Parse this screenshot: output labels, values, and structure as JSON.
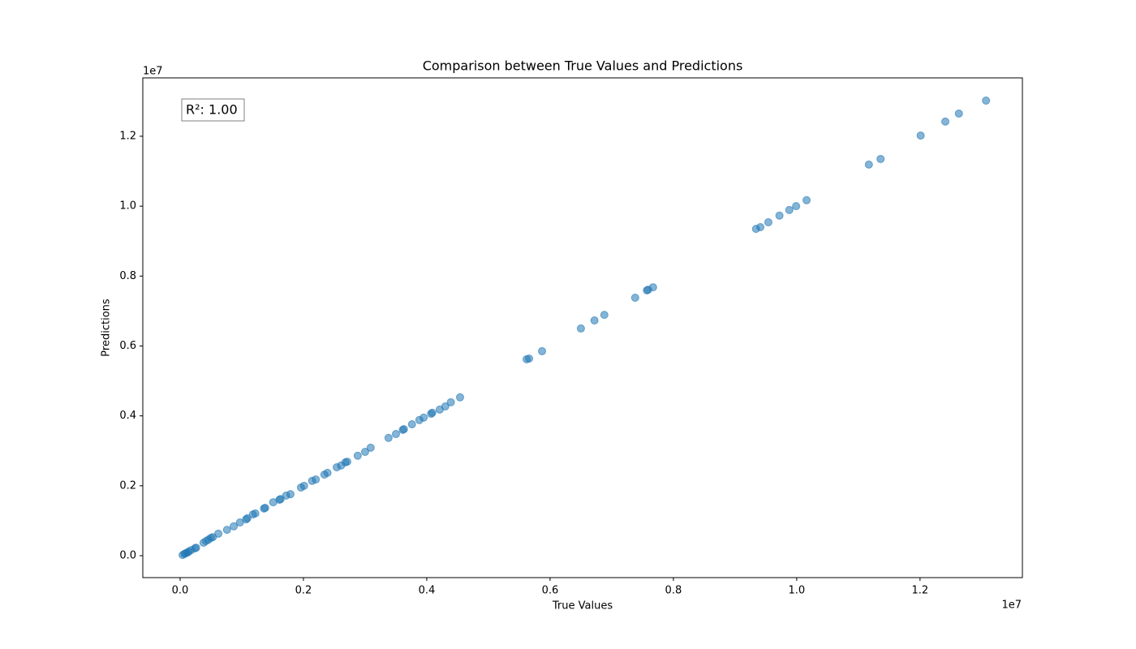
{
  "chart_data": {
    "type": "scatter",
    "title": "Comparison between True Values and Predictions",
    "xlabel": "True Values",
    "ylabel": "Predictions",
    "annotation": "R²: 1.00",
    "x_offset_label": "1e7",
    "y_offset_label": "1e7",
    "color": "#1f77b4",
    "xlim": [
      -605000,
      13660000
    ],
    "ylim": [
      -627000,
      13670000
    ],
    "xticks": [
      {
        "value": 0,
        "label": "0.0"
      },
      {
        "value": 2000000,
        "label": "0.2"
      },
      {
        "value": 4000000,
        "label": "0.4"
      },
      {
        "value": 6000000,
        "label": "0.6"
      },
      {
        "value": 8000000,
        "label": "0.8"
      },
      {
        "value": 10000000,
        "label": "1.0"
      },
      {
        "value": 12000000,
        "label": "1.2"
      }
    ],
    "yticks": [
      {
        "value": 0,
        "label": "0.0"
      },
      {
        "value": 2000000,
        "label": "0.2"
      },
      {
        "value": 4000000,
        "label": "0.4"
      },
      {
        "value": 6000000,
        "label": "0.6"
      },
      {
        "value": 8000000,
        "label": "0.8"
      },
      {
        "value": 10000000,
        "label": "1.0"
      },
      {
        "value": 12000000,
        "label": "1.2"
      }
    ],
    "x": [
      40000,
      70000,
      90000,
      120000,
      140000,
      180000,
      240000,
      260000,
      380000,
      420000,
      460000,
      500000,
      530000,
      620000,
      760000,
      870000,
      970000,
      1070000,
      1090000,
      1180000,
      1220000,
      1360000,
      1380000,
      1510000,
      1610000,
      1630000,
      1720000,
      1790000,
      1960000,
      2010000,
      2140000,
      2200000,
      2340000,
      2390000,
      2540000,
      2610000,
      2680000,
      2710000,
      2880000,
      3000000,
      3090000,
      3380000,
      3500000,
      3610000,
      3630000,
      3760000,
      3880000,
      3950000,
      4070000,
      4090000,
      4210000,
      4300000,
      4390000,
      4540000,
      5620000,
      5660000,
      5870000,
      6500000,
      6720000,
      6880000,
      7380000,
      7570000,
      7590000,
      7670000,
      9340000,
      9410000,
      9540000,
      9720000,
      9880000,
      9990000,
      10160000,
      11170000,
      11360000,
      12010000,
      12410000,
      12630000,
      13070000
    ],
    "y": [
      20000,
      50000,
      70000,
      90000,
      120000,
      160000,
      210000,
      230000,
      370000,
      420000,
      460000,
      510000,
      530000,
      630000,
      740000,
      840000,
      950000,
      1040000,
      1070000,
      1180000,
      1210000,
      1350000,
      1370000,
      1530000,
      1600000,
      1620000,
      1720000,
      1760000,
      1950000,
      2000000,
      2140000,
      2180000,
      2320000,
      2370000,
      2530000,
      2580000,
      2670000,
      2690000,
      2860000,
      2970000,
      3090000,
      3370000,
      3480000,
      3600000,
      3620000,
      3760000,
      3880000,
      3950000,
      4060000,
      4090000,
      4180000,
      4270000,
      4390000,
      4530000,
      5620000,
      5640000,
      5850000,
      6500000,
      6730000,
      6890000,
      7380000,
      7590000,
      7610000,
      7680000,
      9350000,
      9400000,
      9540000,
      9730000,
      9890000,
      10000000,
      10170000,
      11190000,
      11350000,
      12020000,
      12420000,
      12650000,
      13020000
    ]
  }
}
